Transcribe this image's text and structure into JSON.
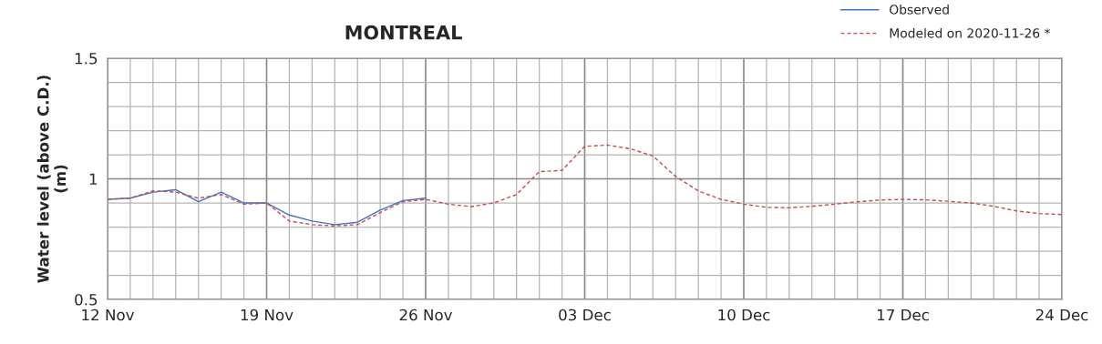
{
  "chart_data": {
    "type": "line",
    "title": "MONTREAL",
    "ylabel": "Water level (above C.D.)\n(m)",
    "series": [
      {
        "name": "Observed",
        "color": "#4472c4",
        "line_style": "solid",
        "x": [
          "2020-11-12",
          "2020-11-13",
          "2020-11-14",
          "2020-11-15",
          "2020-11-16",
          "2020-11-17",
          "2020-11-18",
          "2020-11-19",
          "2020-11-20",
          "2020-11-21",
          "2020-11-22",
          "2020-11-23",
          "2020-11-24",
          "2020-11-25",
          "2020-11-26"
        ],
        "values": [
          0.915,
          0.92,
          0.945,
          0.955,
          0.905,
          0.945,
          0.9,
          0.9,
          0.85,
          0.825,
          0.81,
          0.82,
          0.87,
          0.91,
          0.92
        ]
      },
      {
        "name": "Modeled on 2020-11-26 *",
        "color": "#c0504d",
        "line_style": "dashed",
        "x": [
          "2020-11-12",
          "2020-11-13",
          "2020-11-14",
          "2020-11-15",
          "2020-11-16",
          "2020-11-17",
          "2020-11-18",
          "2020-11-19",
          "2020-11-20",
          "2020-11-21",
          "2020-11-22",
          "2020-11-23",
          "2020-11-24",
          "2020-11-25",
          "2020-11-26",
          "2020-11-27",
          "2020-11-28",
          "2020-11-29",
          "2020-11-30",
          "2020-12-01",
          "2020-12-02",
          "2020-12-03",
          "2020-12-04",
          "2020-12-05",
          "2020-12-06",
          "2020-12-07",
          "2020-12-08",
          "2020-12-09",
          "2020-12-10",
          "2020-12-11",
          "2020-12-12",
          "2020-12-13",
          "2020-12-14",
          "2020-12-15",
          "2020-12-16",
          "2020-12-17",
          "2020-12-18",
          "2020-12-19",
          "2020-12-20",
          "2020-12-21",
          "2020-12-22",
          "2020-12-23",
          "2020-12-24"
        ],
        "values": [
          0.915,
          0.92,
          0.95,
          0.945,
          0.92,
          0.935,
          0.895,
          0.9,
          0.825,
          0.81,
          0.805,
          0.81,
          0.86,
          0.905,
          0.915,
          0.895,
          0.885,
          0.9,
          0.935,
          1.03,
          1.035,
          1.135,
          1.14,
          1.125,
          1.095,
          1.01,
          0.95,
          0.915,
          0.895,
          0.882,
          0.88,
          0.886,
          0.895,
          0.905,
          0.912,
          0.915,
          0.913,
          0.907,
          0.9,
          0.886,
          0.867,
          0.856,
          0.852
        ]
      }
    ],
    "xlim": [
      "2020-11-12",
      "2020-12-24"
    ],
    "xticks": [
      {
        "value": "2020-11-12",
        "label": "12 Nov"
      },
      {
        "value": "2020-11-13",
        "label": null
      },
      {
        "value": "2020-11-14",
        "label": null
      },
      {
        "value": "2020-11-15",
        "label": null
      },
      {
        "value": "2020-11-16",
        "label": null
      },
      {
        "value": "2020-11-17",
        "label": null
      },
      {
        "value": "2020-11-18",
        "label": null
      },
      {
        "value": "2020-11-19",
        "label": "19 Nov"
      },
      {
        "value": "2020-11-20",
        "label": null
      },
      {
        "value": "2020-11-21",
        "label": null
      },
      {
        "value": "2020-11-22",
        "label": null
      },
      {
        "value": "2020-11-23",
        "label": null
      },
      {
        "value": "2020-11-24",
        "label": null
      },
      {
        "value": "2020-11-25",
        "label": null
      },
      {
        "value": "2020-11-26",
        "label": "26 Nov"
      },
      {
        "value": "2020-11-27",
        "label": null
      },
      {
        "value": "2020-11-28",
        "label": null
      },
      {
        "value": "2020-11-29",
        "label": null
      },
      {
        "value": "2020-11-30",
        "label": null
      },
      {
        "value": "2020-12-01",
        "label": null
      },
      {
        "value": "2020-12-02",
        "label": null
      },
      {
        "value": "2020-12-03",
        "label": "03 Dec"
      },
      {
        "value": "2020-12-04",
        "label": null
      },
      {
        "value": "2020-12-05",
        "label": null
      },
      {
        "value": "2020-12-06",
        "label": null
      },
      {
        "value": "2020-12-07",
        "label": null
      },
      {
        "value": "2020-12-08",
        "label": null
      },
      {
        "value": "2020-12-09",
        "label": null
      },
      {
        "value": "2020-12-10",
        "label": "10 Dec"
      },
      {
        "value": "2020-12-11",
        "label": null
      },
      {
        "value": "2020-12-12",
        "label": null
      },
      {
        "value": "2020-12-13",
        "label": null
      },
      {
        "value": "2020-12-14",
        "label": null
      },
      {
        "value": "2020-12-15",
        "label": null
      },
      {
        "value": "2020-12-16",
        "label": null
      },
      {
        "value": "2020-12-17",
        "label": "17 Dec"
      },
      {
        "value": "2020-12-18",
        "label": null
      },
      {
        "value": "2020-12-19",
        "label": null
      },
      {
        "value": "2020-12-20",
        "label": null
      },
      {
        "value": "2020-12-21",
        "label": null
      },
      {
        "value": "2020-12-22",
        "label": null
      },
      {
        "value": "2020-12-23",
        "label": null
      },
      {
        "value": "2020-12-24",
        "label": "24 Dec"
      }
    ],
    "ylim": [
      0.5,
      1.5
    ],
    "yticks": [
      0.5,
      {
        "value": 0.6,
        "label": null
      },
      {
        "value": 0.7,
        "label": null
      },
      {
        "value": 0.8,
        "label": null
      },
      {
        "value": 0.9,
        "label": null
      },
      {
        "value": 1.0,
        "label": "1"
      },
      {
        "value": 1.1,
        "label": null
      },
      {
        "value": 1.2,
        "label": null
      },
      {
        "value": 1.3,
        "label": null
      },
      {
        "value": 1.4,
        "label": null
      },
      1.5
    ],
    "grid": true,
    "legend": "top right",
    "marker": "none"
  }
}
